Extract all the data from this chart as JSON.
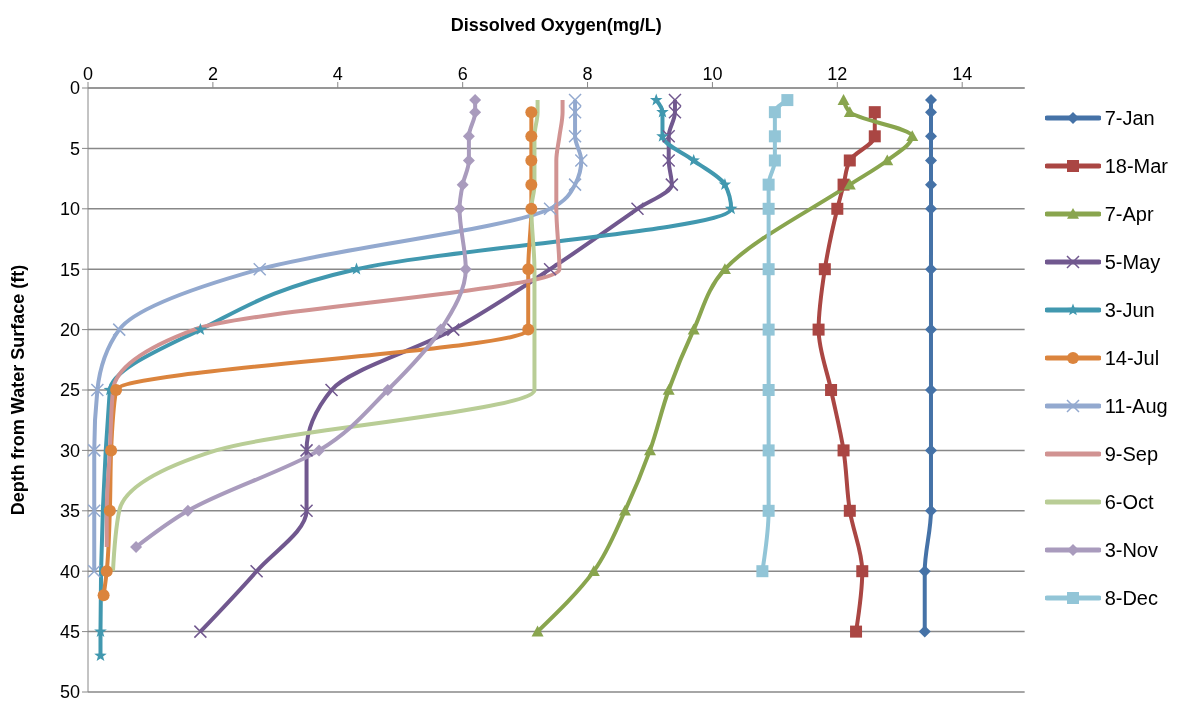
{
  "chart_data": {
    "type": "line",
    "xlabel": "Dissolved Oxygen(mg/L)",
    "ylabel": "Depth from Water Surface (ft)",
    "xlim": [
      0,
      15
    ],
    "xticks": [
      0,
      2,
      4,
      6,
      8,
      10,
      12,
      14
    ],
    "ylim": [
      50,
      0
    ],
    "yticks": [
      0,
      5,
      10,
      15,
      20,
      25,
      30,
      35,
      40,
      45,
      50
    ],
    "grid": "y",
    "legend": "right",
    "series": [
      {
        "name": "7-Jan",
        "color": "#4572a7",
        "marker": "diamond",
        "x": [
          13.5,
          13.5,
          13.5,
          13.5,
          13.5,
          13.5,
          13.5,
          13.5,
          13.5,
          13.5,
          13.5,
          13.4,
          13.4
        ],
        "values": [
          1,
          2,
          4,
          6,
          8,
          10,
          15,
          20,
          25,
          30,
          35,
          40,
          45
        ]
      },
      {
        "name": "18-Mar",
        "color": "#aa4643",
        "marker": "square",
        "x": [
          12.6,
          12.6,
          12.2,
          12.1,
          12.0,
          11.8,
          11.7,
          11.9,
          12.1,
          12.2,
          12.4,
          12.3
        ],
        "values": [
          2,
          4,
          6,
          8,
          10,
          15,
          20,
          25,
          30,
          35,
          40,
          45
        ]
      },
      {
        "name": "7-Apr",
        "color": "#89a54e",
        "marker": "triangle",
        "x": [
          12.1,
          12.2,
          13.2,
          12.8,
          12.2,
          10.2,
          9.7,
          9.3,
          9.0,
          8.6,
          8.1,
          7.2
        ],
        "values": [
          1,
          2,
          4,
          6,
          8,
          15,
          20,
          25,
          30,
          35,
          40,
          45
        ]
      },
      {
        "name": "5-May",
        "color": "#71588f",
        "marker": "cross",
        "x": [
          9.4,
          9.4,
          9.3,
          9.3,
          9.35,
          8.8,
          7.4,
          5.85,
          3.9,
          3.5,
          3.5,
          2.7,
          1.8
        ],
        "values": [
          1,
          2,
          4,
          6,
          8,
          10,
          15,
          20,
          25,
          30,
          35,
          40,
          45
        ]
      },
      {
        "name": "3-Jun",
        "color": "#4198af",
        "marker": "star",
        "x": [
          9.1,
          9.2,
          9.2,
          9.7,
          10.2,
          10.3,
          4.3,
          1.8,
          0.35,
          0.2,
          0.2
        ],
        "values": [
          1,
          2,
          4,
          6,
          8,
          10,
          15,
          20,
          25,
          45,
          47
        ]
      },
      {
        "name": "14-Jul",
        "color": "#db843d",
        "marker": "circle",
        "x": [
          7.1,
          7.1,
          7.1,
          7.1,
          7.1,
          7.05,
          7.05,
          0.45,
          0.37,
          0.35,
          0.3,
          0.25
        ],
        "values": [
          2,
          4,
          6,
          8,
          10,
          15,
          20,
          25,
          30,
          35,
          40,
          42
        ]
      },
      {
        "name": "11-Aug",
        "color": "#93a9cf",
        "marker": "cross",
        "x": [
          7.8,
          7.8,
          7.8,
          7.9,
          7.8,
          7.4,
          2.75,
          0.5,
          0.15,
          0.1,
          0.1,
          0.1
        ],
        "values": [
          1,
          2,
          4,
          6,
          8,
          10,
          15,
          20,
          25,
          30,
          35,
          40
        ]
      },
      {
        "name": "9-Sep",
        "color": "#d19392",
        "marker": "none",
        "x": [
          7.6,
          7.6,
          7.55,
          7.5,
          7.5,
          7.5,
          7.55,
          1.7,
          0.4,
          0.35,
          0.3,
          0.3
        ],
        "values": [
          1,
          2,
          4,
          6,
          8,
          10,
          15,
          20,
          25,
          30,
          35,
          38
        ]
      },
      {
        "name": "6-Oct",
        "color": "#b9cd96",
        "marker": "none",
        "x": [
          7.2,
          7.2,
          7.15,
          7.15,
          7.15,
          7.1,
          7.15,
          7.15,
          7.15,
          2.05,
          0.5,
          0.4
        ],
        "values": [
          1,
          2,
          4,
          6,
          8,
          10,
          15,
          20,
          25,
          30,
          35,
          40
        ]
      },
      {
        "name": "3-Nov",
        "color": "#a99bbd",
        "marker": "diamond",
        "x": [
          6.2,
          6.2,
          6.1,
          6.1,
          6.0,
          5.95,
          6.05,
          5.65,
          4.8,
          3.7,
          1.6,
          0.77
        ],
        "values": [
          1,
          2,
          4,
          6,
          8,
          10,
          15,
          20,
          25,
          30,
          35,
          38
        ]
      },
      {
        "name": "8-Dec",
        "color": "#92c5d7",
        "marker": "square",
        "x": [
          11.2,
          11.0,
          11.0,
          11.0,
          10.9,
          10.9,
          10.9,
          10.9,
          10.9,
          10.9,
          10.9,
          10.8
        ],
        "values": [
          1,
          2,
          4,
          6,
          8,
          10,
          15,
          20,
          25,
          30,
          35,
          40
        ]
      }
    ]
  }
}
